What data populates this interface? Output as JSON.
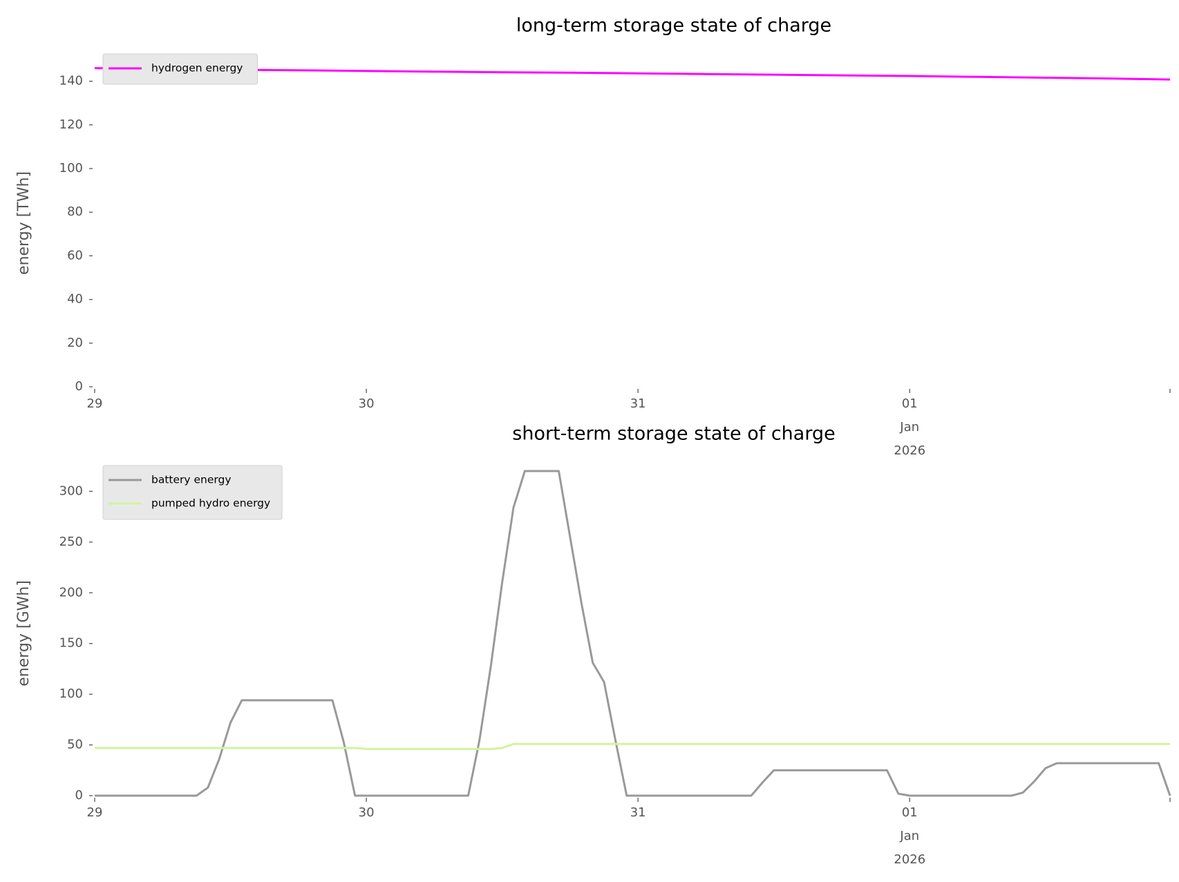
{
  "chart_data": [
    {
      "type": "line",
      "title": "long-term storage state of charge",
      "xlabel": "",
      "ylabel": "energy [TWh]",
      "ylim": [
        0,
        150
      ],
      "yticks": [
        0,
        20,
        40,
        60,
        80,
        100,
        120,
        140
      ],
      "xlim": [
        "2025-12-29 00:00",
        "2026-01-01 23:00"
      ],
      "xticks": [
        {
          "x": "2025-12-29",
          "label": [
            "29"
          ]
        },
        {
          "x": "2025-12-30",
          "label": [
            "30"
          ]
        },
        {
          "x": "2025-12-31",
          "label": [
            "31"
          ]
        },
        {
          "x": "2026-01-01",
          "label": [
            "01",
            "Jan",
            "2026"
          ]
        }
      ],
      "grid": false,
      "legend_position": "top-left",
      "series": [
        {
          "name": "hydrogen energy",
          "color": "#ff00ff",
          "points": [
            [
              "2025-12-29 00:00",
              146.0
            ],
            [
              "2025-12-29 06:00",
              145.6
            ],
            [
              "2025-12-29 12:00",
              145.3
            ],
            [
              "2025-12-29 18:00",
              145.0
            ],
            [
              "2025-12-30 00:00",
              144.7
            ],
            [
              "2025-12-30 06:00",
              144.4
            ],
            [
              "2025-12-30 12:00",
              144.1
            ],
            [
              "2025-12-30 18:00",
              143.9
            ],
            [
              "2025-12-31 00:00",
              143.6
            ],
            [
              "2025-12-31 06:00",
              143.3
            ],
            [
              "2025-12-31 12:00",
              143.0
            ],
            [
              "2025-12-31 18:00",
              142.7
            ],
            [
              "2026-01-01 00:00",
              142.4
            ],
            [
              "2026-01-01 06:00",
              142.0
            ],
            [
              "2026-01-01 12:00",
              141.6
            ],
            [
              "2026-01-01 18:00",
              141.2
            ],
            [
              "2026-01-01 23:00",
              140.8
            ]
          ]
        }
      ]
    },
    {
      "type": "line",
      "title": "short-term storage state of charge",
      "xlabel": "",
      "ylabel": "energy [GWh]",
      "ylim": [
        0,
        320
      ],
      "yticks": [
        0,
        50,
        100,
        150,
        200,
        250,
        300
      ],
      "xlim": [
        "2025-12-29 00:00",
        "2026-01-01 23:00"
      ],
      "xticks": [
        {
          "x": "2025-12-29",
          "label": [
            "29"
          ]
        },
        {
          "x": "2025-12-30",
          "label": [
            "30"
          ]
        },
        {
          "x": "2025-12-31",
          "label": [
            "31"
          ]
        },
        {
          "x": "2026-01-01",
          "label": [
            "01",
            "Jan",
            "2026"
          ]
        }
      ],
      "grid": false,
      "legend_position": "top-left",
      "series": [
        {
          "name": "battery energy",
          "color": "#999999",
          "points": [
            [
              "2025-12-29 00:00",
              0
            ],
            [
              "2025-12-29 09:00",
              0
            ],
            [
              "2025-12-29 10:00",
              8
            ],
            [
              "2025-12-29 11:00",
              36
            ],
            [
              "2025-12-29 12:00",
              72
            ],
            [
              "2025-12-29 13:00",
              94
            ],
            [
              "2025-12-29 21:00",
              94
            ],
            [
              "2025-12-29 22:00",
              53
            ],
            [
              "2025-12-29 23:00",
              0
            ],
            [
              "2025-12-30 09:00",
              0
            ],
            [
              "2025-12-30 10:00",
              55
            ],
            [
              "2025-12-30 11:00",
              128
            ],
            [
              "2025-12-30 12:00",
              210
            ],
            [
              "2025-12-30 13:00",
              284
            ],
            [
              "2025-12-30 14:00",
              320
            ],
            [
              "2025-12-30 17:00",
              320
            ],
            [
              "2025-12-30 18:00",
              255
            ],
            [
              "2025-12-30 19:00",
              190
            ],
            [
              "2025-12-30 20:00",
              131
            ],
            [
              "2025-12-30 21:00",
              112
            ],
            [
              "2025-12-30 22:00",
              55
            ],
            [
              "2025-12-30 23:00",
              0
            ],
            [
              "2025-12-31 10:00",
              0
            ],
            [
              "2025-12-31 11:00",
              13
            ],
            [
              "2025-12-31 12:00",
              25
            ],
            [
              "2025-12-31 22:00",
              25
            ],
            [
              "2025-12-31 23:00",
              2
            ],
            [
              "2026-01-01 00:00",
              0
            ],
            [
              "2026-01-01 09:00",
              0
            ],
            [
              "2026-01-01 10:00",
              3
            ],
            [
              "2026-01-01 11:00",
              14
            ],
            [
              "2026-01-01 12:00",
              27
            ],
            [
              "2026-01-01 13:00",
              32
            ],
            [
              "2026-01-01 22:00",
              32
            ],
            [
              "2026-01-01 23:00",
              0
            ]
          ]
        },
        {
          "name": "pumped hydro energy",
          "color": "#cff59b",
          "points": [
            [
              "2025-12-29 00:00",
              47
            ],
            [
              "2025-12-29 23:00",
              47
            ],
            [
              "2025-12-30 00:00",
              46
            ],
            [
              "2025-12-30 11:00",
              46
            ],
            [
              "2025-12-30 12:00",
              47
            ],
            [
              "2025-12-30 13:00",
              51
            ],
            [
              "2026-01-01 23:00",
              51
            ]
          ]
        }
      ]
    }
  ]
}
